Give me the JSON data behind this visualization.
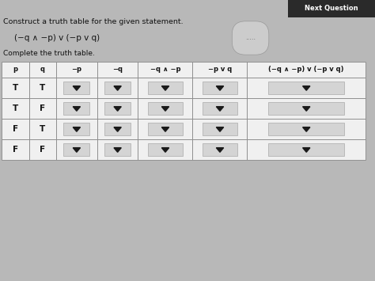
{
  "title1": "Construct a truth table for the given statement.",
  "formula": "(−q ∧ −p) v (−p v q)",
  "subtitle": "Complete the truth table.",
  "next_question_label": "Next Question",
  "headers": [
    "p",
    "q",
    "−p",
    "−q",
    "−q ∧ −p",
    "−p v q",
    "(−q ∧ −p) v (−p v q)"
  ],
  "rows": [
    [
      "T",
      "T"
    ],
    [
      "T",
      "F"
    ],
    [
      "F",
      "T"
    ],
    [
      "F",
      "F"
    ]
  ],
  "page_bg": "#b8b8b8",
  "table_cell_bg": "#f0f0f0",
  "table_border": "#888888",
  "dropdown_bg": "#d4d4d4",
  "dropdown_border": "#aaaaaa",
  "next_btn_bg": "#2a2a2a",
  "next_btn_text": "#ffffff",
  "text_color": "#111111",
  "dots_color": "#666666",
  "col_weights": [
    0.6,
    0.6,
    0.9,
    0.9,
    1.2,
    1.2,
    2.6
  ],
  "header_fontsize": 6.0,
  "body_fontsize": 7.5,
  "title_fontsize": 6.8,
  "formula_fontsize": 7.5,
  "subtitle_fontsize": 6.5,
  "btn_fontsize": 6.0
}
